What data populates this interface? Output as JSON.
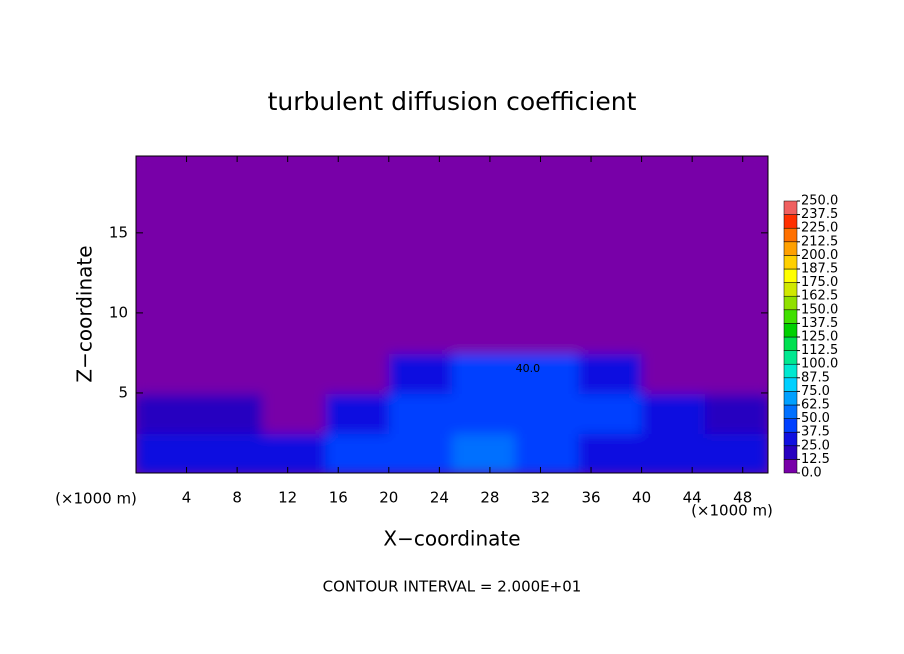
{
  "chart_data": {
    "type": "contour",
    "title": "turbulent diffusion coefficient",
    "x_label": "X−coordinate",
    "y_label": "Z−coordinate",
    "x_unit": "(×1000 m)",
    "x_unit_right": "(×1000 m)",
    "footnote": "CONTOUR INTERVAL = 2.000E+01",
    "xlim": [
      0,
      50
    ],
    "ylim": [
      0,
      19.8
    ],
    "xticks": [
      4,
      8,
      12,
      16,
      20,
      24,
      28,
      32,
      36,
      40,
      44,
      48
    ],
    "yticks": [
      5,
      10,
      15
    ],
    "xbins": [
      0,
      5,
      10,
      15,
      20,
      25,
      30,
      35,
      40,
      45,
      50
    ],
    "ybins": [
      0,
      2.5,
      5,
      7.5,
      10,
      12.5,
      15,
      17.5,
      19.8
    ],
    "values": [
      [
        30,
        25,
        35,
        40,
        45,
        55,
        40,
        35,
        30,
        30
      ],
      [
        15,
        20,
        10,
        35,
        40,
        45,
        40,
        40,
        25,
        20
      ],
      [
        5,
        3,
        0,
        2,
        35,
        40,
        40,
        35,
        10,
        2
      ],
      [
        0,
        0,
        0,
        0,
        2,
        5,
        5,
        0,
        0,
        0
      ],
      [
        0,
        0,
        0,
        0,
        0,
        0,
        0,
        0,
        0,
        0
      ],
      [
        0,
        0,
        0,
        0,
        0,
        0,
        0,
        0,
        0,
        0
      ],
      [
        0,
        0,
        0,
        0,
        0,
        0,
        0,
        0,
        0,
        0
      ],
      [
        0,
        0,
        0,
        0,
        0,
        0,
        0,
        0,
        0,
        0
      ]
    ],
    "annotations": [
      {
        "text": "40.0",
        "x": 31,
        "y": 6.5
      }
    ],
    "levels": [
      {
        "value": 0,
        "label": "0.0"
      },
      12.5,
      {
        "value": 25,
        "label": "25.0"
      },
      37.5,
      {
        "value": 50,
        "label": "50.0"
      },
      62.5,
      {
        "value": 75,
        "label": "75.0"
      },
      87.5,
      {
        "value": 100,
        "label": "100.0"
      },
      112.5,
      {
        "value": 125,
        "label": "125.0"
      },
      137.5,
      {
        "value": 150,
        "label": "150.0"
      },
      162.5,
      {
        "value": 175,
        "label": "175.0"
      },
      187.5,
      {
        "value": 200,
        "label": "200.0"
      },
      212.5,
      {
        "value": 225,
        "label": "225.0"
      },
      237.5,
      {
        "value": 250,
        "label": "250.0"
      }
    ],
    "colors": [
      "#7800a8",
      "#2800c0",
      "#1010e0",
      "#0040ff",
      "#0070ff",
      "#00a0ff",
      "#00d0ff",
      "#00e8d0",
      "#00e890",
      "#00e050",
      "#00d000",
      "#40e000",
      "#90e000",
      "#d0e800",
      "#ffff00",
      "#ffd000",
      "#ffa000",
      "#ff7000",
      "#ff3000",
      "#f06060"
    ]
  }
}
